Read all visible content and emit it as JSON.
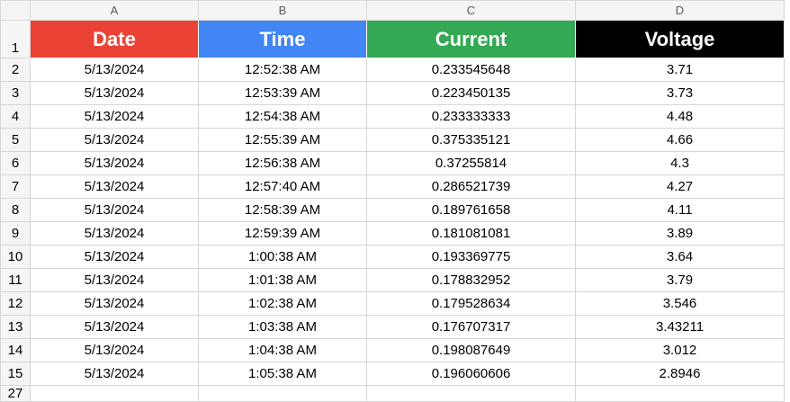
{
  "column_headers": [
    "A",
    "B",
    "C",
    "D"
  ],
  "header_row_number": "1",
  "titles": {
    "date": "Date",
    "time": "Time",
    "current": "Current",
    "voltage": "Voltage"
  },
  "colors": {
    "date": "#ea4335",
    "time": "#4285f4",
    "current": "#34a853",
    "voltage": "#000000"
  },
  "rows": [
    {
      "num": "2",
      "date": "5/13/2024",
      "time": "12:52:38 AM",
      "current": "0.233545648",
      "voltage": "3.71"
    },
    {
      "num": "3",
      "date": "5/13/2024",
      "time": "12:53:39 AM",
      "current": "0.223450135",
      "voltage": "3.73"
    },
    {
      "num": "4",
      "date": "5/13/2024",
      "time": "12:54:38 AM",
      "current": "0.233333333",
      "voltage": "4.48"
    },
    {
      "num": "5",
      "date": "5/13/2024",
      "time": "12:55:39 AM",
      "current": "0.375335121",
      "voltage": "4.66"
    },
    {
      "num": "6",
      "date": "5/13/2024",
      "time": "12:56:38 AM",
      "current": "0.37255814",
      "voltage": "4.3"
    },
    {
      "num": "7",
      "date": "5/13/2024",
      "time": "12:57:40 AM",
      "current": "0.286521739",
      "voltage": "4.27"
    },
    {
      "num": "8",
      "date": "5/13/2024",
      "time": "12:58:39 AM",
      "current": "0.189761658",
      "voltage": "4.11"
    },
    {
      "num": "9",
      "date": "5/13/2024",
      "time": "12:59:39 AM",
      "current": "0.181081081",
      "voltage": "3.89"
    },
    {
      "num": "10",
      "date": "5/13/2024",
      "time": "1:00:38 AM",
      "current": "0.193369775",
      "voltage": "3.64"
    },
    {
      "num": "11",
      "date": "5/13/2024",
      "time": "1:01:38 AM",
      "current": "0.178832952",
      "voltage": "3.79"
    },
    {
      "num": "12",
      "date": "5/13/2024",
      "time": "1:02:38 AM",
      "current": "0.179528634",
      "voltage": "3.546"
    },
    {
      "num": "13",
      "date": "5/13/2024",
      "time": "1:03:38 AM",
      "current": "0.176707317",
      "voltage": "3.43211"
    },
    {
      "num": "14",
      "date": "5/13/2024",
      "time": "1:04:38 AM",
      "current": "0.198087649",
      "voltage": "3.012"
    },
    {
      "num": "15",
      "date": "5/13/2024",
      "time": "1:05:38 AM",
      "current": "0.196060606",
      "voltage": "2.8946"
    }
  ],
  "last_row_number": "27"
}
